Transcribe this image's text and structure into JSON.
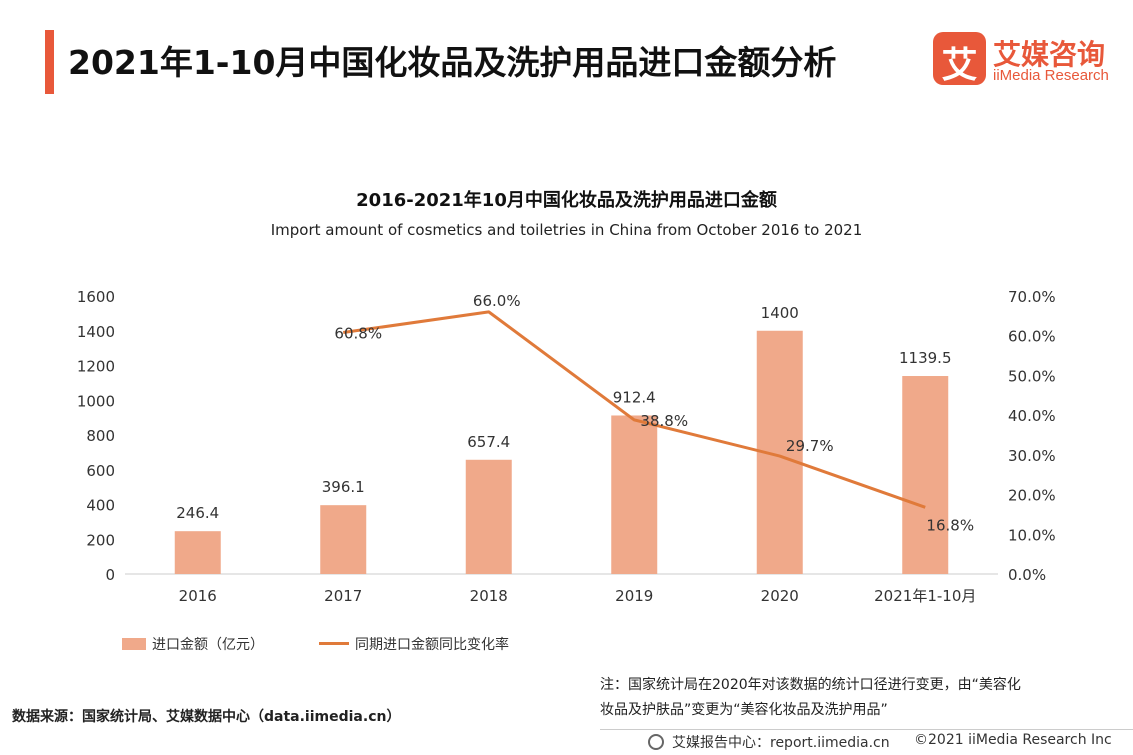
{
  "header": {
    "title": "2021年1-10月中国化妆品及洗护用品进口金额分析"
  },
  "logo": {
    "mark": "艾",
    "name_cn": "艾媒咨询",
    "name_en": "iiMedia Research",
    "brand_color": "#e8583a"
  },
  "chart_data": {
    "type": "bar+line",
    "title": "2016-2021年10月中国化妆品及洗护用品进口金额",
    "subtitle": "Import amount of cosmetics and toiletries in China from October 2016 to 2021",
    "categories": [
      "2016",
      "2017",
      "2018",
      "2019",
      "2020",
      "2021年1-10月"
    ],
    "series": [
      {
        "name": "进口金额（亿元）",
        "type": "bar",
        "axis": "left",
        "color": "#f0a98a",
        "values": [
          246.4,
          396.1,
          657.4,
          912.4,
          1400,
          1139.5
        ],
        "labels": [
          "246.4",
          "396.1",
          "657.4",
          "912.4",
          "1400",
          "1139.5"
        ]
      },
      {
        "name": "同期进口金额同比变化率",
        "type": "line",
        "axis": "right",
        "color": "#e07a3a",
        "values": [
          null,
          60.8,
          66.0,
          38.8,
          29.7,
          16.8
        ],
        "labels": [
          "",
          "60.8%",
          "66.0%",
          "38.8%",
          "29.7%",
          "16.8%"
        ]
      }
    ],
    "y_left": {
      "min": 0,
      "max": 1600,
      "ticks": [
        "0",
        "200",
        "400",
        "600",
        "800",
        "1000",
        "1200",
        "1400",
        "1600"
      ]
    },
    "y_right": {
      "min": 0,
      "max": 70,
      "ticks": [
        "0.0%",
        "10.0%",
        "20.0%",
        "30.0%",
        "40.0%",
        "50.0%",
        "60.0%",
        "70.0%"
      ]
    },
    "grid": false,
    "legend_position": "bottom-left"
  },
  "note": {
    "line1": "注：国家统计局在2020年对该数据的统计口径进行变更，由“美容化",
    "line2": "妆品及护肤品”变更为“美容化妆品及洗护用品”"
  },
  "source": "数据来源：国家统计局、艾媒数据中心（data.iimedia.cn）",
  "footer": {
    "text": "艾媒报告中心：report.iimedia.cn",
    "copyright": "©2021  iiMedia Research  Inc"
  }
}
